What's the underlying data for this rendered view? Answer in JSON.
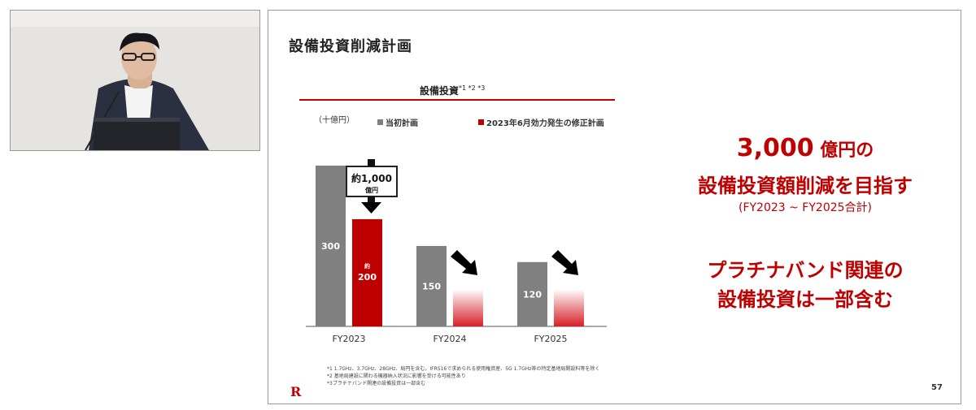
{
  "slide": {
    "title": "設備投資削減計画",
    "chart_title": "設備投資",
    "chart_title_marks": "*1 *2 *3",
    "unit": "（十億円）",
    "legend": [
      {
        "label": "当初計画",
        "color": "#808080"
      },
      {
        "label": "2023年6月効力発生の修正計画",
        "color": "#bf0000"
      }
    ],
    "reduction_label_1": "約1,000",
    "reduction_label_2": "億円",
    "approx_prefix": "約",
    "footnotes": [
      "*1 1.7GHz、3.7GHz、28GHz、局円を含む。IFRS16で求められる使用権資産、5G 1.7GHz帯の特定基地局開設料等を除く",
      "*2 基地局建設に関わる機器納入状況に影響を受ける可能性あり",
      "*3プラチナバンド関連の設備投資は一部含む"
    ],
    "logo": "R",
    "page_number": "57",
    "message_1_num": "3,000",
    "message_1_rest": " 億円の",
    "message_2": "設備投資額削減を目指す",
    "message_3": "(FY2023 ~ FY2025合計)",
    "message_4": "プラチナバンド関連の",
    "message_5": "設備投資は一部含む"
  },
  "chart_data": {
    "type": "bar",
    "categories": [
      "FY2023",
      "FY2024",
      "FY2025"
    ],
    "series": [
      {
        "name": "当初計画",
        "values": [
          300,
          150,
          120
        ],
        "color": "#808080"
      },
      {
        "name": "2023年6月効力発生の修正計画",
        "values": [
          200,
          null,
          null
        ],
        "color": "#bf0000"
      }
    ],
    "value_labels": {
      "当初計画": [
        "300",
        "150",
        "120"
      ],
      "修正計画": [
        "200",
        "",
        ""
      ]
    },
    "ylim": [
      0,
      310
    ],
    "grid": false
  }
}
